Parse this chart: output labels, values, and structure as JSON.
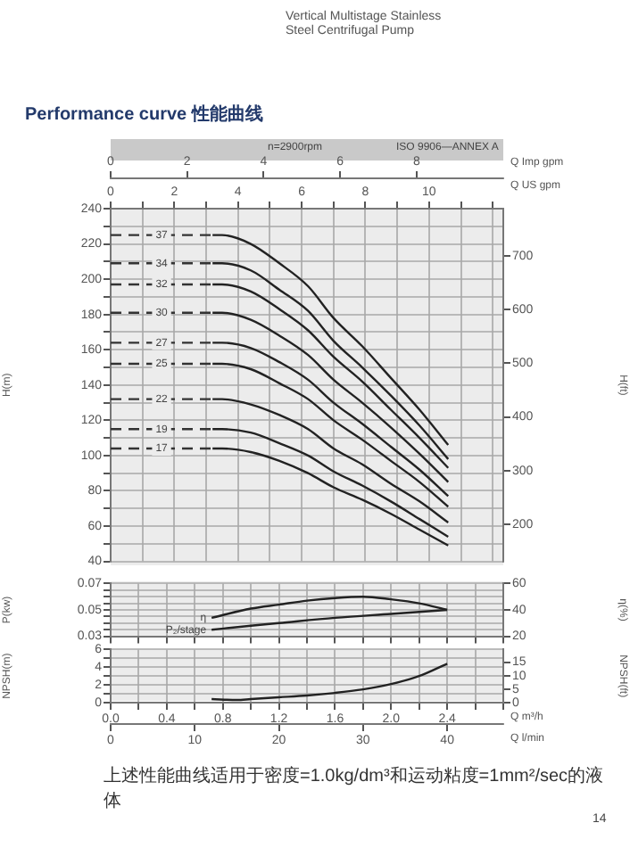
{
  "chart_data": [
    {
      "type": "line",
      "title": "Performance curve 性能曲线",
      "subtitle": "Vertical Multistage Stainless Steel Centrifugal Pump",
      "annotations": [
        "n=2900rpm",
        "ISO 9906—ANNEX A",
        "上述性能曲线适用于密度=1.0kg/dm³和运动粘度=1mm²/sec的液体",
        "14"
      ],
      "ylabel": "H(m)",
      "y2label": "H(ft)",
      "xlabel": "Q US gpm",
      "x2label": "Q Imp gpm",
      "grid": true,
      "marker": "none",
      "xlim": [
        0,
        12.33
      ],
      "xticks": [
        0,
        {
          "value": 1,
          "label": null
        },
        2,
        {
          "value": 3,
          "label": null
        },
        4,
        {
          "value": 5,
          "label": null
        },
        6,
        {
          "value": 7,
          "label": null
        },
        8,
        {
          "value": 9,
          "label": null
        },
        10,
        {
          "value": 11,
          "label": null
        },
        {
          "value": 12,
          "label": null
        }
      ],
      "x2lim": [
        0,
        10.264
      ],
      "x2ticks": [
        0,
        2,
        4,
        6,
        8
      ],
      "ylim": [
        40,
        240
      ],
      "yticks": [
        40,
        {
          "value": 50,
          "label": null
        },
        60,
        {
          "value": 70,
          "label": null
        },
        80,
        {
          "value": 90,
          "label": null
        },
        100,
        {
          "value": 110,
          "label": null
        },
        120,
        {
          "value": 130,
          "label": null
        },
        140,
        {
          "value": 150,
          "label": null
        },
        160,
        {
          "value": 170,
          "label": null
        },
        180,
        {
          "value": 190,
          "label": null
        },
        200,
        {
          "value": 210,
          "label": null
        },
        220,
        {
          "value": 230,
          "label": null
        },
        240
      ],
      "y2lim": [
        131.2,
        787.4
      ],
      "y2ticks": [
        200,
        300,
        400,
        500,
        600,
        700
      ],
      "series": [
        {
          "name": "37",
          "line_style": "dashed",
          "color": "#333333",
          "x": [
            0,
            3.2
          ],
          "values": [
            225,
            225
          ]
        },
        {
          "color": "#222222",
          "x": [
            3.2,
            3.5,
            4.4,
            5.3,
            6.2,
            7,
            7.9,
            8.8,
            9.7,
            10.6
          ],
          "values": [
            225,
            225,
            220,
            209,
            196,
            178,
            162,
            144,
            126,
            106
          ]
        },
        {
          "name": "34",
          "line_style": "dashed",
          "color": "#333333",
          "x": [
            0,
            3.2
          ],
          "values": [
            209,
            209
          ]
        },
        {
          "color": "#222222",
          "x": [
            3.2,
            3.5,
            4.4,
            5.3,
            6.2,
            7,
            7.9,
            8.8,
            9.7,
            10.6
          ],
          "values": [
            209,
            209,
            205,
            194,
            182,
            165,
            150,
            134,
            117,
            98
          ]
        },
        {
          "name": "32",
          "line_style": "dashed",
          "color": "#333333",
          "x": [
            0,
            3.2
          ],
          "values": [
            197,
            197
          ]
        },
        {
          "color": "#222222",
          "x": [
            3.2,
            3.5,
            4.4,
            5.3,
            6.2,
            7,
            7.9,
            8.8,
            9.7,
            10.6
          ],
          "values": [
            197,
            197,
            193,
            183,
            171,
            156,
            142,
            126,
            110,
            93
          ]
        },
        {
          "name": "30",
          "line_style": "dashed",
          "color": "#333333",
          "x": [
            0,
            3.2
          ],
          "values": [
            181,
            181
          ]
        },
        {
          "color": "#222222",
          "x": [
            3.2,
            3.5,
            4.4,
            5.3,
            6.2,
            7,
            7.9,
            8.8,
            9.7,
            10.6
          ],
          "values": [
            181,
            181,
            177,
            168,
            157,
            143,
            130,
            116,
            101,
            85
          ]
        },
        {
          "name": "27",
          "line_style": "dashed",
          "color": "#333333",
          "x": [
            0,
            3.2
          ],
          "values": [
            164,
            164
          ]
        },
        {
          "color": "#222222",
          "x": [
            3.2,
            3.5,
            4.4,
            5.3,
            6.2,
            7,
            7.9,
            8.8,
            9.7,
            10.6
          ],
          "values": [
            164,
            164,
            161,
            153,
            143,
            130,
            118,
            105,
            92,
            77
          ]
        },
        {
          "name": "25",
          "line_style": "dashed",
          "color": "#333333",
          "x": [
            0,
            3.2
          ],
          "values": [
            152,
            152
          ]
        },
        {
          "color": "#222222",
          "x": [
            3.2,
            3.5,
            4.4,
            5.3,
            6.2,
            7,
            7.9,
            8.8,
            9.7,
            10.6
          ],
          "values": [
            152,
            152,
            149,
            141,
            132,
            120,
            109,
            97,
            85,
            71
          ]
        },
        {
          "name": "22",
          "line_style": "dashed",
          "color": "#333333",
          "x": [
            0,
            3.2
          ],
          "values": [
            132,
            132
          ]
        },
        {
          "color": "#222222",
          "x": [
            3.2,
            3.5,
            4.4,
            5.3,
            6.2,
            7,
            7.9,
            8.8,
            9.7,
            10.6
          ],
          "values": [
            132,
            132,
            129,
            123,
            115,
            104,
            95,
            84,
            74,
            62
          ]
        },
        {
          "name": "19",
          "line_style": "dashed",
          "color": "#333333",
          "x": [
            0,
            3.2
          ],
          "values": [
            115,
            115
          ]
        },
        {
          "color": "#222222",
          "x": [
            3.2,
            3.5,
            4.4,
            5.3,
            6.2,
            7,
            7.9,
            8.8,
            9.7,
            10.6
          ],
          "values": [
            115,
            115,
            113,
            107,
            100,
            91,
            83,
            74,
            64,
            54
          ]
        },
        {
          "name": "17",
          "line_style": "dashed",
          "color": "#333333",
          "x": [
            0,
            3.2
          ],
          "values": [
            104,
            104
          ]
        },
        {
          "color": "#222222",
          "x": [
            3.2,
            3.5,
            4.4,
            5.3,
            6.2,
            7,
            7.9,
            8.8,
            9.7,
            10.6
          ],
          "values": [
            104,
            104,
            102,
            97,
            90,
            82,
            75,
            67,
            58,
            49
          ]
        }
      ]
    },
    {
      "type": "line",
      "ylabel": "P(kw)",
      "y2label": "η(%)",
      "grid": true,
      "marker": "none",
      "tick_labels": "y",
      "xlim": [
        0,
        2.8
      ],
      "xticks": [
        0,
        0.2,
        0.4,
        0.6,
        0.8,
        1,
        1.2,
        1.4,
        1.6,
        1.8,
        2,
        2.2,
        2.4,
        2.6,
        2.8
      ],
      "ylim": [
        0.03,
        0.07
      ],
      "yticks": [
        0.03,
        {
          "value": 0.035,
          "label": null
        },
        {
          "value": 0.04,
          "label": null
        },
        {
          "value": 0.045,
          "label": null
        },
        0.05,
        {
          "value": 0.055,
          "label": null
        },
        {
          "value": 0.06,
          "label": null
        },
        {
          "value": 0.065,
          "label": null
        },
        0.07
      ],
      "y2lim": [
        20,
        60
      ],
      "y2ticks": [
        20,
        40,
        60
      ],
      "series": [
        {
          "name": "η",
          "axis": "y2",
          "color": "#222222",
          "x": [
            0.72,
            1,
            1.2,
            1.4,
            1.6,
            1.8,
            2,
            2.2,
            2.4
          ],
          "values": [
            34,
            41,
            44,
            47,
            49,
            50,
            48,
            45,
            40
          ]
        },
        {
          "name": "P₂/stage",
          "color": "#222222",
          "x": [
            0.72,
            1,
            1.2,
            1.6,
            2,
            2.4
          ],
          "values": [
            0.035,
            0.038,
            0.04,
            0.044,
            0.047,
            0.05
          ]
        }
      ]
    },
    {
      "type": "line",
      "ylabel": "NPSH(m)",
      "y2label": "NPSH(ft)",
      "xlabel": "Q m³/h",
      "x2label": "Q l/min",
      "grid": true,
      "marker": "none",
      "xlim": [
        0,
        2.8
      ],
      "xticks": [
        {
          "value": 0,
          "label": "0.0"
        },
        {
          "value": 0.2,
          "label": null
        },
        0.4,
        {
          "value": 0.6,
          "label": null
        },
        0.8,
        {
          "value": 1,
          "label": null
        },
        1.2,
        {
          "value": 1.4,
          "label": null
        },
        1.6,
        {
          "value": 1.8,
          "label": null
        },
        {
          "value": 2,
          "label": "2.0"
        },
        {
          "value": 2.2,
          "label": null
        },
        2.4,
        {
          "value": 2.6,
          "label": null
        },
        {
          "value": 2.8,
          "label": null
        }
      ],
      "x2lim": [
        0,
        46.667
      ],
      "x2ticks": [
        0,
        10,
        20,
        30,
        40
      ],
      "ylim": [
        0,
        6
      ],
      "yticks": [
        0,
        {
          "value": 1,
          "label": null
        },
        2,
        {
          "value": 3,
          "label": null
        },
        4,
        {
          "value": 5,
          "label": null
        },
        6
      ],
      "y2lim": [
        0,
        19.685
      ],
      "y2ticks": [
        0,
        5,
        10,
        15
      ],
      "series": [
        {
          "color": "#222222",
          "x": [
            0.72,
            0.9,
            1,
            1.2,
            1.4,
            1.6,
            1.8,
            2,
            2.2,
            2.4
          ],
          "values": [
            0.4,
            0.3,
            0.4,
            0.6,
            0.8,
            1.1,
            1.5,
            2.1,
            3,
            4.4
          ]
        }
      ]
    }
  ]
}
